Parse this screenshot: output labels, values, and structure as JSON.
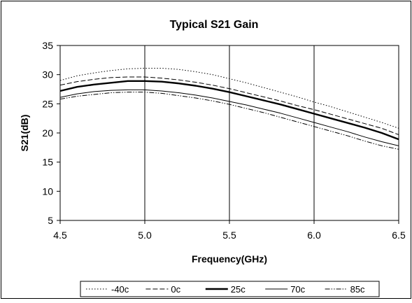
{
  "chart_data": {
    "type": "line",
    "title": "Typical S21 Gain",
    "xlabel": "Frequency(GHz)",
    "ylabel": "S21(dB)",
    "xlim": [
      4.5,
      6.5
    ],
    "ylim": [
      5,
      35
    ],
    "xticks": [
      "4.5",
      "5.0",
      "5.5",
      "6.0",
      "6.5"
    ],
    "yticks": [
      "5",
      "10",
      "15",
      "20",
      "25",
      "30",
      "35"
    ],
    "grid": "vertical",
    "legend_position": "bottom",
    "series": [
      {
        "name": "-40c",
        "style": "dotted",
        "x": [
          4.5,
          4.6,
          4.7,
          4.8,
          4.9,
          5.0,
          5.1,
          5.2,
          5.3,
          5.4,
          5.5,
          5.6,
          5.7,
          5.8,
          5.9,
          6.0,
          6.1,
          6.2,
          6.3,
          6.4,
          6.5
        ],
        "y": [
          29.0,
          29.8,
          30.3,
          30.7,
          31.0,
          31.1,
          31.1,
          30.9,
          30.5,
          30.0,
          29.3,
          28.6,
          27.8,
          27.0,
          26.2,
          25.3,
          24.5,
          23.6,
          22.7,
          21.8,
          20.8
        ]
      },
      {
        "name": "0c",
        "style": "dashed",
        "x": [
          4.5,
          4.6,
          4.7,
          4.8,
          4.9,
          5.0,
          5.1,
          5.2,
          5.3,
          5.4,
          5.5,
          5.6,
          5.7,
          5.8,
          5.9,
          6.0,
          6.1,
          6.2,
          6.3,
          6.4,
          6.5
        ],
        "y": [
          28.2,
          28.8,
          29.2,
          29.5,
          29.6,
          29.6,
          29.4,
          29.1,
          28.7,
          28.2,
          27.6,
          26.9,
          26.2,
          25.5,
          24.7,
          24.0,
          23.2,
          22.4,
          21.6,
          20.8,
          19.7
        ]
      },
      {
        "name": "25c",
        "style": "thick",
        "x": [
          4.5,
          4.6,
          4.7,
          4.8,
          4.9,
          5.0,
          5.1,
          5.2,
          5.3,
          5.4,
          5.5,
          5.6,
          5.7,
          5.8,
          5.9,
          6.0,
          6.1,
          6.2,
          6.3,
          6.4,
          6.5
        ],
        "y": [
          27.2,
          27.9,
          28.3,
          28.6,
          28.9,
          28.9,
          28.8,
          28.5,
          28.1,
          27.6,
          27.0,
          26.3,
          25.6,
          24.9,
          24.1,
          23.3,
          22.5,
          21.7,
          20.9,
          20.0,
          18.9
        ]
      },
      {
        "name": "70c",
        "style": "solid",
        "x": [
          4.5,
          4.6,
          4.7,
          4.8,
          4.9,
          5.0,
          5.1,
          5.2,
          5.3,
          5.4,
          5.5,
          5.6,
          5.7,
          5.8,
          5.9,
          6.0,
          6.1,
          6.2,
          6.3,
          6.4,
          6.5
        ],
        "y": [
          26.1,
          26.7,
          27.1,
          27.3,
          27.4,
          27.4,
          27.2,
          26.9,
          26.5,
          26.0,
          25.4,
          24.8,
          24.1,
          23.4,
          22.6,
          21.8,
          21.0,
          20.2,
          19.3,
          18.5,
          17.8
        ]
      },
      {
        "name": "85c",
        "style": "dash-dot-dot",
        "x": [
          4.5,
          4.6,
          4.7,
          4.8,
          4.9,
          5.0,
          5.1,
          5.2,
          5.3,
          5.4,
          5.5,
          5.6,
          5.7,
          5.8,
          5.9,
          6.0,
          6.1,
          6.2,
          6.3,
          6.4,
          6.5
        ],
        "y": [
          25.8,
          26.3,
          26.6,
          26.9,
          27.0,
          27.0,
          26.8,
          26.4,
          26.0,
          25.5,
          24.9,
          24.2,
          23.5,
          22.7,
          21.9,
          21.1,
          20.3,
          19.5,
          18.6,
          17.8,
          17.2
        ]
      }
    ]
  }
}
